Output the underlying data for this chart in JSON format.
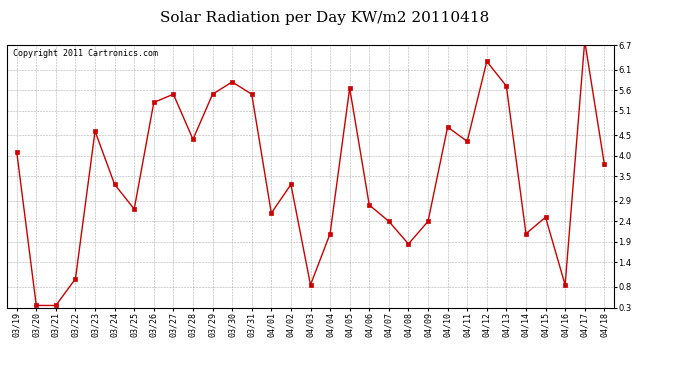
{
  "title": "Solar Radiation per Day KW/m2 20110418",
  "copyright": "Copyright 2011 Cartronics.com",
  "labels": [
    "03/19",
    "03/20",
    "03/21",
    "03/22",
    "03/23",
    "03/24",
    "03/25",
    "03/26",
    "03/27",
    "03/28",
    "03/29",
    "03/30",
    "03/31",
    "04/01",
    "04/02",
    "04/03",
    "04/04",
    "04/05",
    "04/06",
    "04/07",
    "04/08",
    "04/09",
    "04/10",
    "04/11",
    "04/12",
    "04/13",
    "04/14",
    "04/15",
    "04/16",
    "04/17",
    "04/18"
  ],
  "values": [
    4.1,
    0.35,
    0.35,
    1.0,
    4.6,
    3.3,
    2.7,
    5.3,
    5.5,
    4.4,
    5.5,
    5.8,
    5.5,
    2.6,
    3.3,
    0.85,
    2.1,
    5.65,
    2.8,
    2.4,
    1.85,
    2.4,
    4.7,
    4.35,
    6.3,
    5.7,
    2.1,
    2.5,
    0.85,
    6.8,
    3.8
  ],
  "line_color": "#cc0000",
  "marker": "s",
  "marker_size": 2.5,
  "ylim": [
    0.3,
    6.7
  ],
  "yticks": [
    0.3,
    0.8,
    1.4,
    1.9,
    2.4,
    2.9,
    3.5,
    4.0,
    4.5,
    5.1,
    5.6,
    6.1,
    6.7
  ],
  "bg_color": "#ffffff",
  "grid_color": "#999999",
  "title_fontsize": 11,
  "tick_fontsize": 6,
  "copyright_fontsize": 6
}
